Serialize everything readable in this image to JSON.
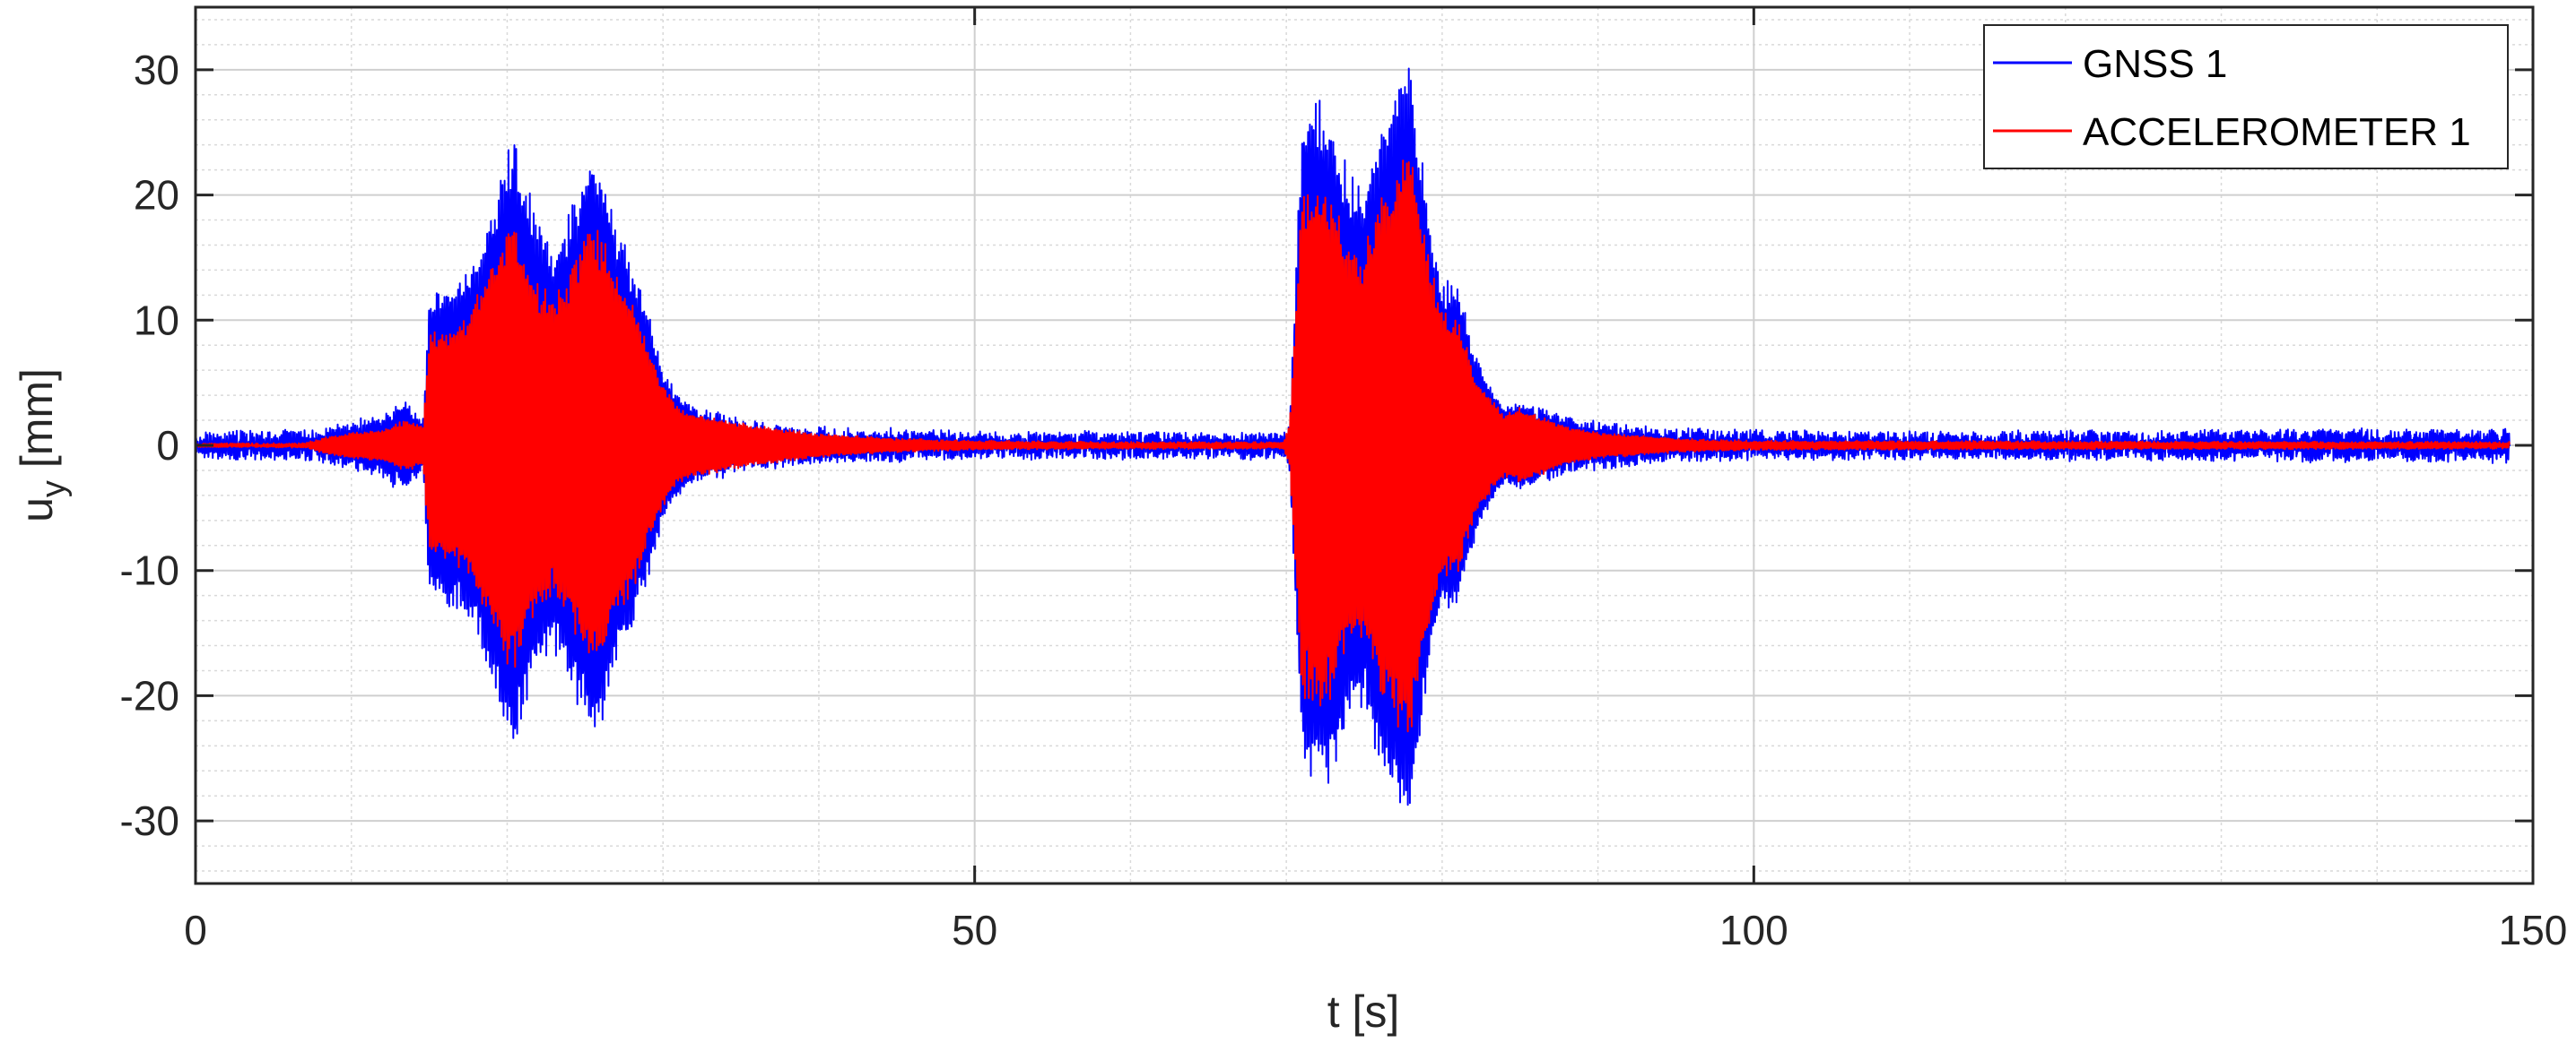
{
  "chart_data": {
    "type": "line",
    "title": "",
    "xlabel": "t [s]",
    "ylabel_main": "u",
    "ylabel_sub": "y",
    "ylabel_unit": " [mm]",
    "xlim": [
      0,
      150
    ],
    "ylim": [
      -35,
      35
    ],
    "xticks": [
      0,
      50,
      100,
      150
    ],
    "yticks": [
      -30,
      -20,
      -10,
      0,
      10,
      20,
      30
    ],
    "xtick_labels": [
      "0",
      "50",
      "100",
      "150"
    ],
    "ytick_labels": [
      "-30",
      "-20",
      "-10",
      "0",
      "10",
      "20",
      "30"
    ],
    "grid": true,
    "minor_grid": true,
    "legend_position": "top-right",
    "series": [
      {
        "name": "GNSS 1",
        "color": "#0000ff",
        "noise_floor": 0.6,
        "envelope": [
          [
            0,
            0.6
          ],
          [
            8,
            0.8
          ],
          [
            10,
            1.5
          ],
          [
            12,
            2.2
          ],
          [
            13.5,
            3.5
          ],
          [
            14.6,
            1.8
          ],
          [
            15,
            12
          ],
          [
            16,
            13
          ],
          [
            17,
            13.5
          ],
          [
            18,
            15
          ],
          [
            19,
            19
          ],
          [
            20,
            24
          ],
          [
            20.5,
            25
          ],
          [
            21,
            22
          ],
          [
            22,
            18
          ],
          [
            23,
            16.5
          ],
          [
            24,
            19
          ],
          [
            25,
            22.5
          ],
          [
            25.5,
            24
          ],
          [
            26,
            23
          ],
          [
            27,
            18
          ],
          [
            28,
            15
          ],
          [
            29,
            11
          ],
          [
            30,
            6
          ],
          [
            31,
            4
          ],
          [
            32,
            3
          ],
          [
            34,
            2
          ],
          [
            36,
            1.5
          ],
          [
            40,
            1
          ],
          [
            45,
            0.8
          ],
          [
            50,
            0.6
          ],
          [
            55,
            0.6
          ],
          [
            60,
            0.6
          ],
          [
            65,
            0.6
          ],
          [
            69.8,
            0.6
          ],
          [
            70.2,
            1.5
          ],
          [
            71,
            26
          ],
          [
            72,
            28.5
          ],
          [
            73,
            27
          ],
          [
            74,
            22
          ],
          [
            75,
            21
          ],
          [
            76,
            26
          ],
          [
            77,
            29
          ],
          [
            78,
            31.5
          ],
          [
            79,
            20
          ],
          [
            80,
            13
          ],
          [
            81,
            13.5
          ],
          [
            82,
            8
          ],
          [
            83,
            5
          ],
          [
            84,
            3
          ],
          [
            85,
            3.5
          ],
          [
            86,
            3
          ],
          [
            87,
            2.5
          ],
          [
            88,
            2
          ],
          [
            90,
            1.5
          ],
          [
            95,
            0.9
          ],
          [
            100,
            0.7
          ],
          [
            110,
            0.6
          ],
          [
            120,
            0.7
          ],
          [
            130,
            0.8
          ],
          [
            140,
            0.8
          ],
          [
            148,
            0.9
          ]
        ]
      },
      {
        "name": "ACCELEROMETER 1",
        "color": "#ff0000",
        "noise_floor": 0.1,
        "envelope": [
          [
            0,
            0.05
          ],
          [
            7,
            0.1
          ],
          [
            8,
            0.5
          ],
          [
            10,
            1.0
          ],
          [
            12,
            1.2
          ],
          [
            13.5,
            2.0
          ],
          [
            14.6,
            1.5
          ],
          [
            15,
            9
          ],
          [
            16,
            9.5
          ],
          [
            17,
            10
          ],
          [
            18,
            12
          ],
          [
            19,
            15
          ],
          [
            20,
            17.5
          ],
          [
            20.5,
            18
          ],
          [
            21,
            16
          ],
          [
            22,
            13
          ],
          [
            23,
            12
          ],
          [
            24,
            14
          ],
          [
            25,
            17
          ],
          [
            25.5,
            18
          ],
          [
            26,
            17
          ],
          [
            27,
            14
          ],
          [
            28,
            12
          ],
          [
            29,
            8
          ],
          [
            30,
            5
          ],
          [
            31,
            3
          ],
          [
            32,
            2.5
          ],
          [
            34,
            2
          ],
          [
            36,
            1.5
          ],
          [
            40,
            0.9
          ],
          [
            45,
            0.5
          ],
          [
            50,
            0.3
          ],
          [
            60,
            0.2
          ],
          [
            69.8,
            0.2
          ],
          [
            70.2,
            1.5
          ],
          [
            71,
            20
          ],
          [
            72,
            22
          ],
          [
            73,
            20
          ],
          [
            74,
            16
          ],
          [
            75,
            16
          ],
          [
            76,
            20
          ],
          [
            77,
            22.5
          ],
          [
            78,
            24
          ],
          [
            79,
            16
          ],
          [
            80,
            11
          ],
          [
            81,
            10.5
          ],
          [
            82,
            6
          ],
          [
            83,
            4
          ],
          [
            84,
            2.5
          ],
          [
            85,
            3
          ],
          [
            86,
            2.5
          ],
          [
            87,
            2
          ],
          [
            88,
            1.5
          ],
          [
            90,
            1
          ],
          [
            95,
            0.5
          ],
          [
            100,
            0.3
          ],
          [
            148,
            0.2
          ]
        ]
      }
    ],
    "x_end": 148.5
  }
}
